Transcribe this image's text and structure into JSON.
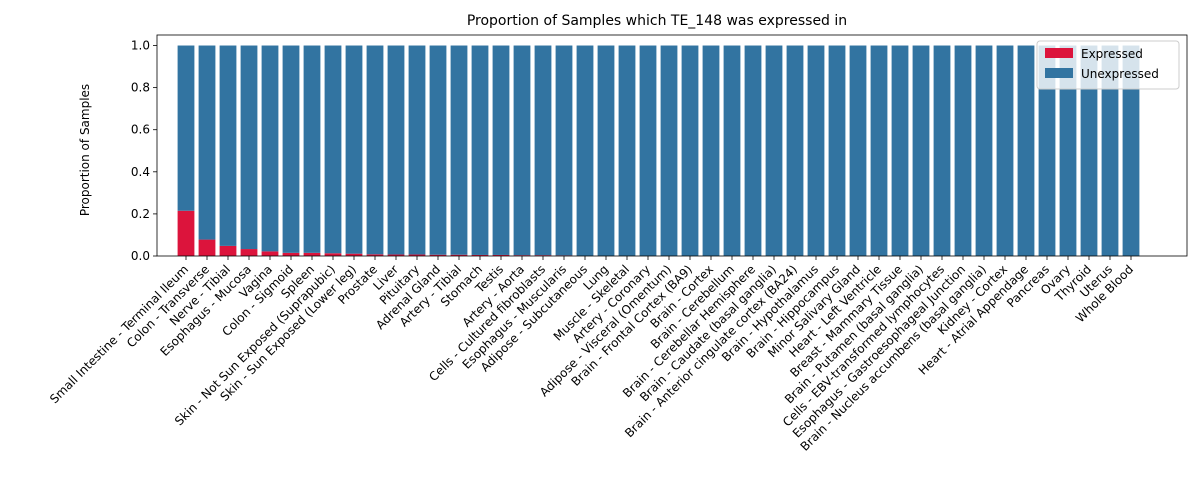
{
  "chart_data": {
    "type": "bar",
    "stacked": true,
    "title": "Proportion of Samples which TE_148 was expressed in",
    "xlabel": "",
    "ylabel": "Proportion of Samples",
    "ylim": [
      0,
      1.05
    ],
    "yticks": [
      "0.0",
      "0.2",
      "0.4",
      "0.6",
      "0.8",
      "1.0"
    ],
    "grid": false,
    "legend_position": "top-right",
    "categories": [
      "Small Intestine - Terminal Ileum",
      "Colon - Transverse",
      "Nerve - Tibial",
      "Esophagus - Mucosa",
      "Vagina",
      "Colon - Sigmoid",
      "Spleen",
      "Skin - Not Sun Exposed (Suprapubic)",
      "Skin - Sun Exposed (Lower leg)",
      "Prostate",
      "Liver",
      "Pituitary",
      "Adrenal Gland",
      "Artery - Tibial",
      "Stomach",
      "Testis",
      "Artery - Aorta",
      "Cells - Cultured fibroblasts",
      "Esophagus - Muscularis",
      "Adipose - Subcutaneous",
      "Lung",
      "Muscle - Skeletal",
      "Artery - Coronary",
      "Adipose - Visceral (Omentum)",
      "Brain - Frontal Cortex (BA9)",
      "Brain - Cortex",
      "Brain - Cerebellum",
      "Brain - Cerebellar Hemisphere",
      "Brain - Caudate (basal ganglia)",
      "Brain - Anterior cingulate cortex (BA24)",
      "Brain - Hypothalamus",
      "Brain - Hippocampus",
      "Minor Salivary Gland",
      "Heart - Left Ventricle",
      "Breast - Mammary Tissue",
      "Brain - Putamen (basal ganglia)",
      "Cells - EBV-transformed lymphocytes",
      "Esophagus - Gastroesophageal Junction",
      "Brain - Nucleus accumbens (basal ganglia)",
      "Kidney - Cortex",
      "Heart - Atrial Appendage",
      "Pancreas",
      "Ovary",
      "Thyroid",
      "Uterus",
      "Whole Blood"
    ],
    "series": [
      {
        "name": "Expressed",
        "color": "#dc143c",
        "values": [
          0.215,
          0.078,
          0.048,
          0.033,
          0.022,
          0.015,
          0.015,
          0.013,
          0.011,
          0.008,
          0.007,
          0.007,
          0.006,
          0.006,
          0.005,
          0.005,
          0.004,
          0.004,
          0.003,
          0,
          0,
          0,
          0,
          0,
          0,
          0,
          0,
          0,
          0,
          0,
          0,
          0,
          0,
          0,
          0,
          0,
          0,
          0,
          0,
          0,
          0,
          0,
          0,
          0,
          0,
          0
        ]
      },
      {
        "name": "Unexpressed",
        "color": "#3274a1",
        "values": [
          0.785,
          0.922,
          0.952,
          0.967,
          0.978,
          0.985,
          0.985,
          0.987,
          0.989,
          0.992,
          0.993,
          0.993,
          0.994,
          0.994,
          0.995,
          0.995,
          0.996,
          0.996,
          0.997,
          1,
          1,
          1,
          1,
          1,
          1,
          1,
          1,
          1,
          1,
          1,
          1,
          1,
          1,
          1,
          1,
          1,
          1,
          1,
          1,
          1,
          1,
          1,
          1,
          1,
          1,
          1
        ]
      }
    ]
  }
}
